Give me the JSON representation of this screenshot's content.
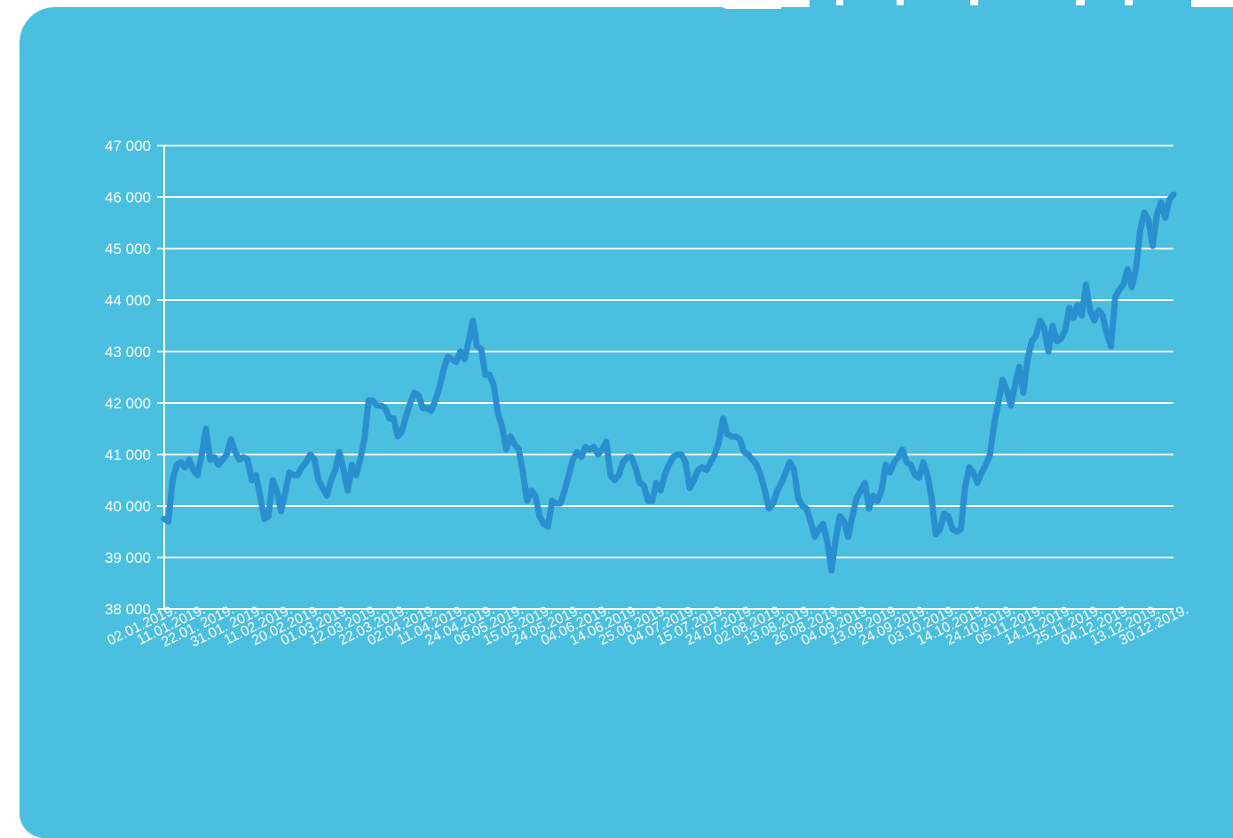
{
  "colors": {
    "card_background": "#4bbfe0",
    "line": "#2a8fcf",
    "grid": "#ffffff",
    "text": "#ffffff"
  },
  "chart_data": {
    "type": "line",
    "title": "",
    "xlabel": "",
    "ylabel": "",
    "ylim": [
      38000,
      47000
    ],
    "y_ticks": [
      38000,
      39000,
      40000,
      41000,
      42000,
      43000,
      44000,
      45000,
      46000,
      47000
    ],
    "y_tick_labels": [
      "38 000",
      "39 000",
      "40 000",
      "41 000",
      "42 000",
      "43 000",
      "44 000",
      "45 000",
      "46 000",
      "47 000"
    ],
    "x_tick_labels": [
      "02.01.2019.",
      "11.01.2019.",
      "22.01. 2019.",
      "31.01. 2019.",
      "11.02.2019.",
      "20.02.2019.",
      "01.03.2019.",
      "12.03.2019.",
      "22.03.2019.",
      "02.04.2019.",
      "11.04.2019.",
      "24.04.2019.",
      "06.05.2019.",
      "15.05.2019.",
      "24.05.2019.",
      "04.06.2019.",
      "14.06.2019.",
      "25.06.2019.",
      "04.07.2019.",
      "15.07.2019.",
      "24.07.2019.",
      "02.08.2019.",
      "13.08.2019.",
      "26.08.2019.",
      "04.09.2019.",
      "13.09.2019.",
      "24.09.2019.",
      "03.10.2019.",
      "14.10.2019.",
      "24.10.2019.",
      "05.11.2019.",
      "14.11.2019.",
      "25.11.2019.",
      "04.12.2019.",
      "13.12.2019.",
      "30.12.2019."
    ],
    "grid": true,
    "legend": "none",
    "series": [
      {
        "values": [
          39750,
          39700,
          40500,
          40800,
          40850,
          40750,
          40900,
          40700,
          40600,
          41000,
          41500,
          40900,
          40950,
          40800,
          40900,
          41000,
          41300,
          41050,
          40900,
          40950,
          40900,
          40500,
          40600,
          40200,
          39750,
          39800,
          40500,
          40300,
          39900,
          40250,
          40650,
          40600,
          40600,
          40750,
          40850,
          41000,
          40900,
          40500,
          40350,
          40200,
          40500,
          40700,
          41050,
          40700,
          40300,
          40800,
          40600,
          40900,
          41300,
          42050,
          42050,
          41950,
          41950,
          41900,
          41700,
          41700,
          41350,
          41450,
          41750,
          42000,
          42200,
          42150,
          41900,
          41900,
          41850,
          42050,
          42300,
          42650,
          42900,
          42850,
          42800,
          43000,
          42850,
          43200,
          43600,
          43100,
          43050,
          42550,
          42550,
          42350,
          41800,
          41550,
          41100,
          41350,
          41200,
          41100,
          40650,
          40100,
          40300,
          40200,
          39800,
          39650,
          39600,
          40100,
          40050,
          40050,
          40300,
          40600,
          40900,
          41050,
          40950,
          41150,
          41100,
          41150,
          41000,
          41100,
          41250,
          40600,
          40500,
          40600,
          40850,
          40950,
          40950,
          40750,
          40450,
          40400,
          40100,
          40100,
          40450,
          40300,
          40600,
          40800,
          40950,
          41000,
          41000,
          40850,
          40350,
          40500,
          40700,
          40750,
          40700,
          40850,
          41000,
          41250,
          41700,
          41400,
          41350,
          41350,
          41300,
          41050,
          41000,
          40900,
          40800,
          40600,
          40300,
          39950,
          40050,
          40300,
          40450,
          40650,
          40850,
          40700,
          40150,
          40000,
          39950,
          39700,
          39400,
          39550,
          39650,
          39300,
          38750,
          39350,
          39800,
          39700,
          39400,
          39800,
          40150,
          40300,
          40450,
          39950,
          40200,
          40100,
          40300,
          40800,
          40650,
          40850,
          40950,
          41100,
          40850,
          40800,
          40600,
          40550,
          40850,
          40600,
          40150,
          39450,
          39550,
          39850,
          39800,
          39550,
          39500,
          39550,
          40350,
          40750,
          40650,
          40450,
          40650,
          40800,
          41000,
          41600,
          42000,
          42450,
          42250,
          41950,
          42350,
          42700,
          42200,
          42850,
          43200,
          43300,
          43600,
          43450,
          43000,
          43500,
          43200,
          43250,
          43400,
          43850,
          43650,
          43900,
          43700,
          44300,
          43800,
          43600,
          43800,
          43700,
          43350,
          43100,
          44050,
          44200,
          44300,
          44600,
          44250,
          44600,
          45350,
          45700,
          45550,
          45050,
          45650,
          45900,
          45600,
          45950,
          46050
        ]
      }
    ]
  }
}
